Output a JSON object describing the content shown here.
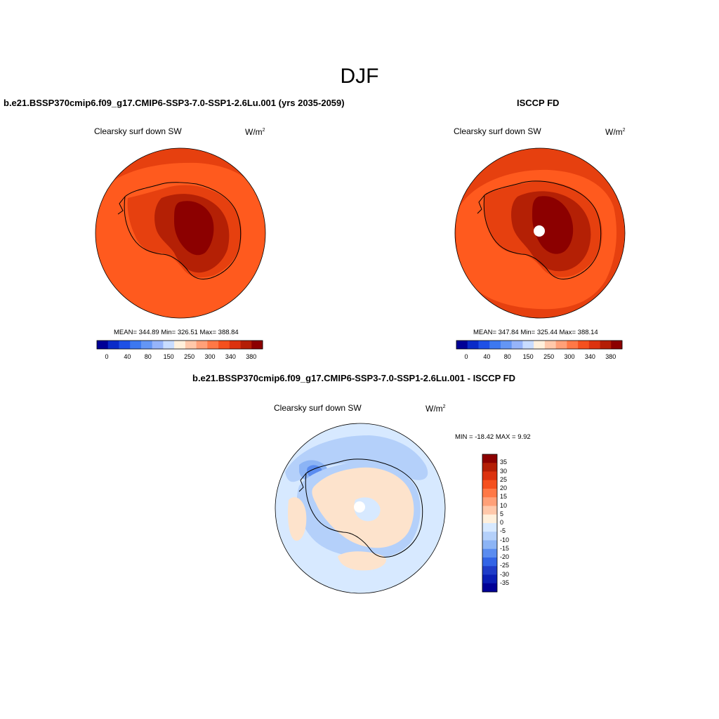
{
  "figure": {
    "title": "DJF"
  },
  "panels": [
    {
      "title": "b.e21.BSSP370cmip6.f09_g17.CMIP6-SSP3-7.0-SSP1-2.6Lu.001 (yrs 2035-2059)",
      "variable": "Clearsky surf down SW",
      "units": "W/m",
      "units_exp": "2",
      "stats": "MEAN= 344.89  Min= 326.51  Max= 388.84",
      "colorbar_ticks": [
        "0",
        "40",
        "80",
        "150",
        "250",
        "300",
        "340",
        "380"
      ],
      "colorbar_colors": [
        "#000096",
        "#0a2bc8",
        "#1e50e6",
        "#3c78f0",
        "#6496f5",
        "#96b4fa",
        "#c8dcff",
        "#fff0dc",
        "#ffc8aa",
        "#ffa078",
        "#ff7846",
        "#f5501e",
        "#dc320f",
        "#b41e05",
        "#8c0000"
      ],
      "field_colors": {
        "ocean": "#ff5a1e",
        "outer_ring": "#e6400f",
        "coast": "#e6400f",
        "interior": "#b42005",
        "plateau": "#8c0000"
      }
    },
    {
      "title": "ISCCP FD",
      "variable": "Clearsky surf down SW",
      "units": "W/m",
      "units_exp": "2",
      "stats": "MEAN= 347.84  Min= 325.44  Max= 388.14",
      "colorbar_ticks": [
        "0",
        "40",
        "80",
        "150",
        "250",
        "300",
        "340",
        "380"
      ],
      "colorbar_colors": [
        "#000096",
        "#0a2bc8",
        "#1e50e6",
        "#3c78f0",
        "#6496f5",
        "#96b4fa",
        "#c8dcff",
        "#fff0dc",
        "#ffc8aa",
        "#ffa078",
        "#ff7846",
        "#f5501e",
        "#dc320f",
        "#b41e05",
        "#8c0000"
      ],
      "field_colors": {
        "ocean": "#ff5a1e",
        "outer_ring": "#e6400f",
        "coast": "#e6400f",
        "interior": "#b42005",
        "plateau": "#8c0000",
        "missing": "#ffffff"
      }
    },
    {
      "title": "b.e21.BSSP370cmip6.f09_g17.CMIP6-SSP3-7.0-SSP1-2.6Lu.001 - ISCCP FD",
      "variable": "Clearsky surf down SW",
      "units": "W/m",
      "units_exp": "2",
      "stats": "MIN = -18.42 MAX =   9.92",
      "colorbar_ticks": [
        "35",
        "30",
        "25",
        "20",
        "15",
        "10",
        "5",
        "0",
        "-5",
        "-10",
        "-15",
        "-20",
        "-25",
        "-30",
        "-35"
      ],
      "colorbar_colors": [
        "#8c0000",
        "#b41e05",
        "#dc320f",
        "#f5501e",
        "#ff7846",
        "#ffa078",
        "#ffc8aa",
        "#fff0dc",
        "#d7e9ff",
        "#b4d0fa",
        "#8cb4f5",
        "#5a8cf0",
        "#3264e6",
        "#1e3cc8",
        "#0a1eb4",
        "#000096"
      ],
      "field_colors": {
        "background": "#d7e9ff",
        "light_blue": "#b4d0fa",
        "blue": "#8cb4f5",
        "dark_blue": "#5a8cf0",
        "positive": "#fde3cc",
        "missing": "#ffffff"
      }
    }
  ]
}
